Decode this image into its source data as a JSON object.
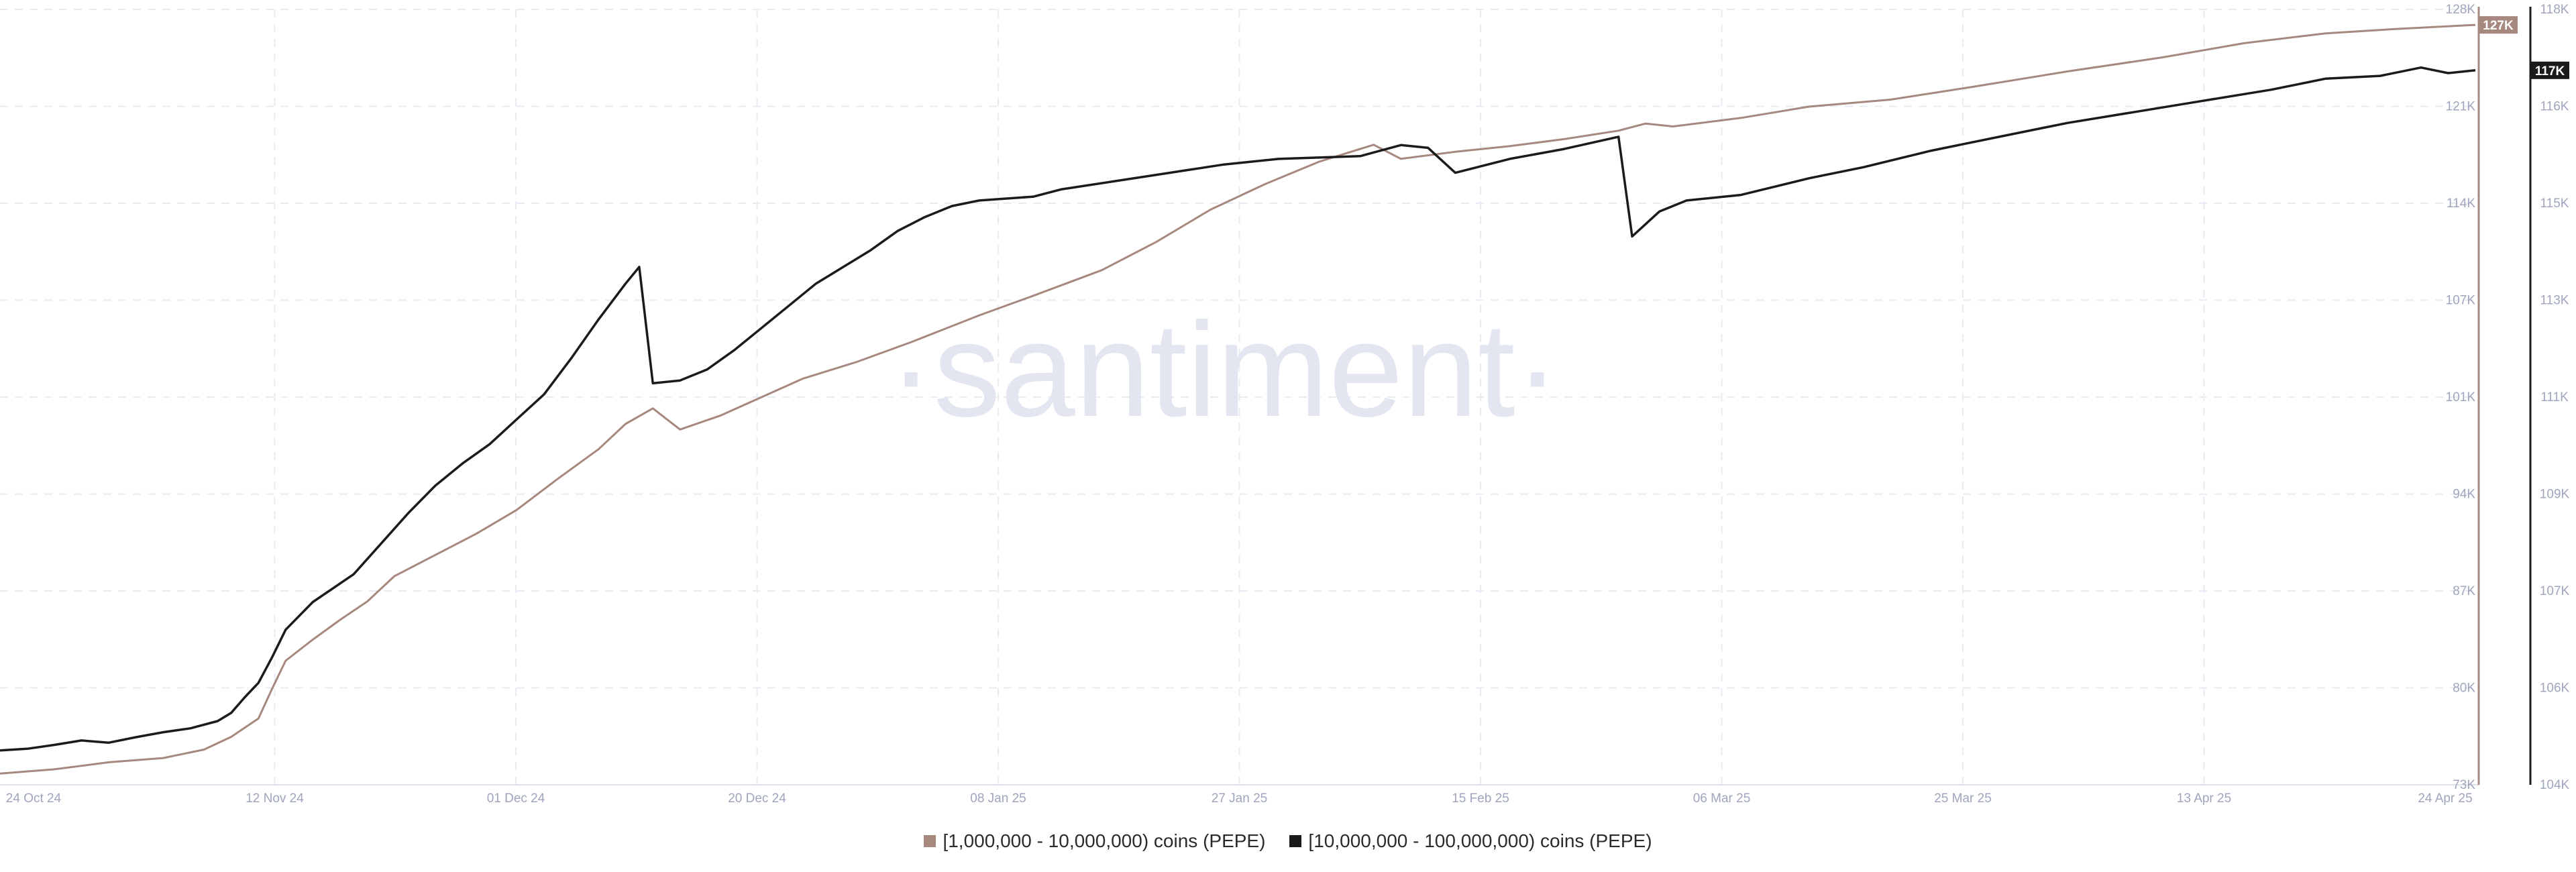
{
  "watermark": "·santiment·",
  "chart_data": {
    "type": "line",
    "x_ticks": [
      "24 Oct 24",
      "12 Nov 24",
      "01 Dec 24",
      "20 Dec 24",
      "08 Jan 25",
      "27 Jan 25",
      "15 Feb 25",
      "06 Mar 25",
      "25 Mar 25",
      "13 Apr 25",
      "24 Apr 25"
    ],
    "x_range": [
      "2024-10-24",
      "2025-04-24"
    ],
    "y_left": {
      "ticks": [
        "73K",
        "80K",
        "87K",
        "94K",
        "101K",
        "107K",
        "114K",
        "121K",
        "128K"
      ],
      "ylim": [
        73000,
        128000
      ]
    },
    "y_right": {
      "ticks": [
        "104K",
        "106K",
        "107K",
        "109K",
        "111K",
        "113K",
        "115K",
        "116K",
        "118K"
      ],
      "ylim": [
        104000,
        118000
      ]
    },
    "grid": true,
    "legend_position": "bottom-center",
    "series": [
      {
        "name": "[1,000,000 - 10,000,000) coins (PEPE)",
        "axis": "left",
        "color": "#a6887f",
        "last_value_label": "127K",
        "points": [
          [
            "2024-10-24",
            73800
          ],
          [
            "2024-10-28",
            74100
          ],
          [
            "2024-11-01",
            74600
          ],
          [
            "2024-11-05",
            74900
          ],
          [
            "2024-11-08",
            75500
          ],
          [
            "2024-11-10",
            76400
          ],
          [
            "2024-11-12",
            77700
          ],
          [
            "2024-11-13",
            79800
          ],
          [
            "2024-11-14",
            81800
          ],
          [
            "2024-11-16",
            83300
          ],
          [
            "2024-11-18",
            84700
          ],
          [
            "2024-11-20",
            86000
          ],
          [
            "2024-11-22",
            87800
          ],
          [
            "2024-11-25",
            89300
          ],
          [
            "2024-11-28",
            90800
          ],
          [
            "2024-12-01",
            92500
          ],
          [
            "2024-12-04",
            94700
          ],
          [
            "2024-12-07",
            96800
          ],
          [
            "2024-12-09",
            98600
          ],
          [
            "2024-12-11",
            99700
          ],
          [
            "2024-12-13",
            98200
          ],
          [
            "2024-12-16",
            99200
          ],
          [
            "2024-12-19",
            100500
          ],
          [
            "2024-12-22",
            101800
          ],
          [
            "2024-12-26",
            103000
          ],
          [
            "2024-12-30",
            104400
          ],
          [
            "2025-01-04",
            106300
          ],
          [
            "2025-01-08",
            107700
          ],
          [
            "2025-01-13",
            109500
          ],
          [
            "2025-01-17",
            111500
          ],
          [
            "2025-01-21",
            113800
          ],
          [
            "2025-01-25",
            115600
          ],
          [
            "2025-01-29",
            117200
          ],
          [
            "2025-02-02",
            118400
          ],
          [
            "2025-02-04",
            117400
          ],
          [
            "2025-02-08",
            117900
          ],
          [
            "2025-02-12",
            118300
          ],
          [
            "2025-02-16",
            118800
          ],
          [
            "2025-02-20",
            119400
          ],
          [
            "2025-02-22",
            119900
          ],
          [
            "2025-02-24",
            119700
          ],
          [
            "2025-03-01",
            120300
          ],
          [
            "2025-03-06",
            121100
          ],
          [
            "2025-03-12",
            121600
          ],
          [
            "2025-03-18",
            122500
          ],
          [
            "2025-03-25",
            123600
          ],
          [
            "2025-04-01",
            124600
          ],
          [
            "2025-04-07",
            125600
          ],
          [
            "2025-04-13",
            126300
          ],
          [
            "2025-04-18",
            126600
          ],
          [
            "2025-04-24",
            126900
          ]
        ]
      },
      {
        "name": "[10,000,000 - 100,000,000) coins (PEPE)",
        "axis": "right",
        "color": "#1b1b1b",
        "last_value_label": "117K",
        "points": [
          [
            "2024-10-24",
            104620
          ],
          [
            "2024-10-26",
            104650
          ],
          [
            "2024-10-28",
            104720
          ],
          [
            "2024-10-30",
            104800
          ],
          [
            "2024-11-01",
            104760
          ],
          [
            "2024-11-03",
            104860
          ],
          [
            "2024-11-05",
            104950
          ],
          [
            "2024-11-07",
            105020
          ],
          [
            "2024-11-09",
            105150
          ],
          [
            "2024-11-10",
            105300
          ],
          [
            "2024-11-11",
            105580
          ],
          [
            "2024-11-12",
            105840
          ],
          [
            "2024-11-13",
            106300
          ],
          [
            "2024-11-14",
            106800
          ],
          [
            "2024-11-16",
            107300
          ],
          [
            "2024-11-19",
            107800
          ],
          [
            "2024-11-21",
            108350
          ],
          [
            "2024-11-23",
            108900
          ],
          [
            "2024-11-25",
            109400
          ],
          [
            "2024-11-27",
            109800
          ],
          [
            "2024-11-29",
            110150
          ],
          [
            "2024-12-01",
            110600
          ],
          [
            "2024-12-03",
            111050
          ],
          [
            "2024-12-05",
            111700
          ],
          [
            "2024-12-07",
            112400
          ],
          [
            "2024-12-09",
            113050
          ],
          [
            "2024-12-10",
            113350
          ],
          [
            "2024-12-11",
            111250
          ],
          [
            "2024-12-13",
            111300
          ],
          [
            "2024-12-15",
            111500
          ],
          [
            "2024-12-17",
            111850
          ],
          [
            "2024-12-19",
            112250
          ],
          [
            "2024-12-21",
            112650
          ],
          [
            "2024-12-23",
            113050
          ],
          [
            "2024-12-25",
            113350
          ],
          [
            "2024-12-27",
            113650
          ],
          [
            "2024-12-29",
            114000
          ],
          [
            "2024-12-31",
            114250
          ],
          [
            "2025-01-02",
            114450
          ],
          [
            "2025-01-04",
            114550
          ],
          [
            "2025-01-08",
            114620
          ],
          [
            "2025-01-10",
            114750
          ],
          [
            "2025-01-14",
            114900
          ],
          [
            "2025-01-18",
            115050
          ],
          [
            "2025-01-22",
            115200
          ],
          [
            "2025-01-26",
            115300
          ],
          [
            "2025-02-01",
            115350
          ],
          [
            "2025-02-04",
            115550
          ],
          [
            "2025-02-06",
            115500
          ],
          [
            "2025-02-08",
            115050
          ],
          [
            "2025-02-12",
            115300
          ],
          [
            "2025-02-16",
            115480
          ],
          [
            "2025-02-20",
            115700
          ],
          [
            "2025-02-21",
            113900
          ],
          [
            "2025-02-23",
            114350
          ],
          [
            "2025-02-25",
            114550
          ],
          [
            "2025-03-01",
            114650
          ],
          [
            "2025-03-06",
            114950
          ],
          [
            "2025-03-10",
            115150
          ],
          [
            "2025-03-15",
            115450
          ],
          [
            "2025-03-20",
            115700
          ],
          [
            "2025-03-25",
            115950
          ],
          [
            "2025-03-30",
            116150
          ],
          [
            "2025-04-04",
            116350
          ],
          [
            "2025-04-09",
            116550
          ],
          [
            "2025-04-13",
            116750
          ],
          [
            "2025-04-17",
            116800
          ],
          [
            "2025-04-20",
            116950
          ],
          [
            "2025-04-22",
            116850
          ],
          [
            "2025-04-24",
            116900
          ]
        ]
      }
    ]
  }
}
